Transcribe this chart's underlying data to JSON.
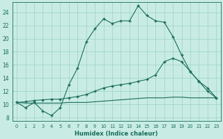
{
  "title": "",
  "xlabel": "Humidex (Indice chaleur)",
  "ylabel": "",
  "bg_color": "#c8ece4",
  "grid_color": "#a8d8cc",
  "line_color": "#1a6b5a",
  "xlim": [
    -0.5,
    23.5
  ],
  "ylim": [
    7.5,
    25.5
  ],
  "xticks": [
    0,
    1,
    2,
    3,
    4,
    5,
    6,
    7,
    8,
    9,
    10,
    11,
    12,
    13,
    14,
    15,
    16,
    17,
    18,
    19,
    20,
    21,
    22,
    23
  ],
  "yticks": [
    8,
    10,
    12,
    14,
    16,
    18,
    20,
    22,
    24
  ],
  "line1_x": [
    0,
    1,
    2,
    3,
    4,
    5,
    6,
    7,
    8,
    9,
    10,
    11,
    12,
    13,
    14,
    15,
    16,
    17,
    18,
    19,
    20,
    21,
    22,
    23
  ],
  "line1_y": [
    10.3,
    9.5,
    10.3,
    9.0,
    8.3,
    9.5,
    13.0,
    15.5,
    19.5,
    21.5,
    23.0,
    22.3,
    22.7,
    22.7,
    25.0,
    23.5,
    22.7,
    22.5,
    20.3,
    17.5,
    15.0,
    13.5,
    12.0,
    11.0
  ],
  "line2_x": [
    0,
    1,
    2,
    3,
    4,
    5,
    6,
    7,
    8,
    9,
    10,
    11,
    12,
    13,
    14,
    15,
    16,
    17,
    18,
    19,
    20,
    21,
    22,
    23
  ],
  "line2_y": [
    10.3,
    10.4,
    10.6,
    10.7,
    10.8,
    10.8,
    11.0,
    11.2,
    11.5,
    12.0,
    12.5,
    12.8,
    13.0,
    13.2,
    13.5,
    13.8,
    14.5,
    16.5,
    17.0,
    16.5,
    15.0,
    13.5,
    12.5,
    11.0
  ],
  "line3_x": [
    0,
    1,
    2,
    3,
    4,
    5,
    6,
    7,
    8,
    9,
    10,
    11,
    12,
    13,
    14,
    15,
    16,
    17,
    18,
    19,
    20,
    21,
    22,
    23
  ],
  "line3_y": [
    10.3,
    10.2,
    10.2,
    10.2,
    10.2,
    10.2,
    10.3,
    10.3,
    10.3,
    10.4,
    10.5,
    10.6,
    10.7,
    10.8,
    10.9,
    11.0,
    11.0,
    11.0,
    11.1,
    11.1,
    11.0,
    11.0,
    11.0,
    11.0
  ]
}
